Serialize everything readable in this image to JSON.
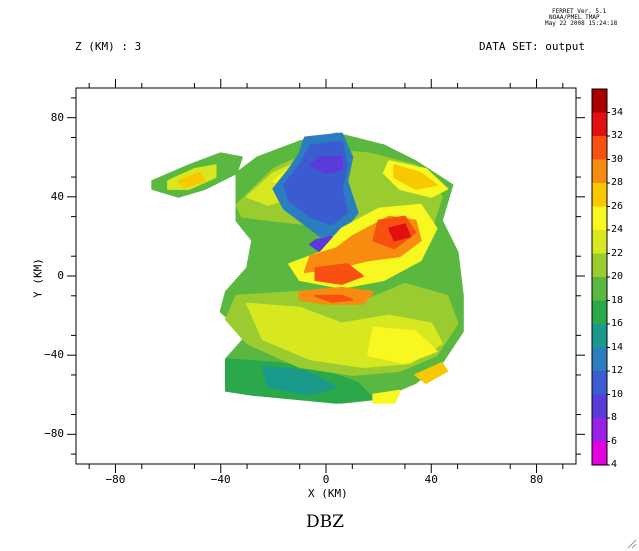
{
  "header": {
    "program_line1": "FERRET Ver. 5.1",
    "program_line2": "NOAA/PMEL TMAP",
    "program_line3": "May 22 2008 15:24:18",
    "z_label": "Z (KM) : 3",
    "dataset_label": "DATA SET: output"
  },
  "chart_data": {
    "type": "heatmap",
    "title": "DBZ",
    "xlabel": "X (KM)",
    "ylabel": "Y (KM)",
    "xlim": [
      -95,
      95
    ],
    "ylim": [
      -95,
      95
    ],
    "x_ticks": [
      -80,
      -40,
      0,
      40,
      80
    ],
    "y_ticks": [
      -80,
      -40,
      0,
      40,
      80
    ],
    "x_tick_labels": [
      "−80",
      "−40",
      "0",
      "40",
      "80"
    ],
    "y_tick_labels": [
      "−80",
      "−40",
      "0",
      "40",
      "80"
    ],
    "colorbar": {
      "levels": [
        4,
        6,
        8,
        10,
        12,
        14,
        16,
        18,
        20,
        22,
        24,
        26,
        28,
        30,
        32,
        34
      ],
      "colors": [
        "#e000e0",
        "#9a20e8",
        "#5a3ad8",
        "#3a5cd0",
        "#2a7ec0",
        "#1a9a8a",
        "#2aa84a",
        "#5ab840",
        "#9acc30",
        "#d8e820",
        "#f8f820",
        "#f8c800",
        "#f88c10",
        "#f85010",
        "#e01010",
        "#a80000"
      ]
    },
    "regions": [
      {
        "level": 18,
        "poly": [
          [
            -26,
            60
          ],
          [
            -10,
            68
          ],
          [
            4,
            72
          ],
          [
            22,
            66
          ],
          [
            34,
            58
          ],
          [
            48,
            46
          ],
          [
            44,
            28
          ],
          [
            50,
            12
          ],
          [
            52,
            -10
          ],
          [
            52,
            -28
          ],
          [
            44,
            -44
          ],
          [
            34,
            -54
          ],
          [
            20,
            -62
          ],
          [
            6,
            -64
          ],
          [
            -10,
            -62
          ],
          [
            -28,
            -58
          ],
          [
            -38,
            -56
          ],
          [
            -38,
            -42
          ],
          [
            -30,
            -30
          ],
          [
            -40,
            -18
          ],
          [
            -38,
            -8
          ],
          [
            -30,
            4
          ],
          [
            -28,
            18
          ],
          [
            -34,
            28
          ],
          [
            -34,
            40
          ],
          [
            -34,
            52
          ]
        ]
      },
      {
        "level": 16,
        "poly": [
          [
            -38,
            -42
          ],
          [
            -18,
            -44
          ],
          [
            0,
            -48
          ],
          [
            12,
            -54
          ],
          [
            18,
            -62
          ],
          [
            4,
            -64
          ],
          [
            -12,
            -62
          ],
          [
            -28,
            -60
          ],
          [
            -38,
            -58
          ]
        ]
      },
      {
        "level": 14,
        "poly": [
          [
            -24,
            -46
          ],
          [
            -8,
            -48
          ],
          [
            4,
            -56
          ],
          [
            -6,
            -60
          ],
          [
            -22,
            -56
          ]
        ]
      },
      {
        "level": 20,
        "poly": [
          [
            -34,
            -10
          ],
          [
            -10,
            -8
          ],
          [
            12,
            -14
          ],
          [
            30,
            -4
          ],
          [
            46,
            -10
          ],
          [
            50,
            -24
          ],
          [
            42,
            -40
          ],
          [
            28,
            -48
          ],
          [
            10,
            -50
          ],
          [
            -10,
            -46
          ],
          [
            -30,
            -34
          ],
          [
            -38,
            -22
          ]
        ]
      },
      {
        "level": 22,
        "poly": [
          [
            -30,
            -14
          ],
          [
            -10,
            -16
          ],
          [
            6,
            -24
          ],
          [
            24,
            -20
          ],
          [
            40,
            -24
          ],
          [
            44,
            -34
          ],
          [
            32,
            -44
          ],
          [
            14,
            -46
          ],
          [
            -6,
            -42
          ],
          [
            -24,
            -32
          ]
        ]
      },
      {
        "level": 24,
        "poly": [
          [
            18,
            -26
          ],
          [
            34,
            -28
          ],
          [
            42,
            -38
          ],
          [
            30,
            -44
          ],
          [
            16,
            -40
          ]
        ]
      },
      {
        "level": 20,
        "poly": [
          [
            -34,
            36
          ],
          [
            -20,
            54
          ],
          [
            -4,
            64
          ],
          [
            16,
            62
          ],
          [
            34,
            56
          ],
          [
            44,
            40
          ],
          [
            40,
            24
          ],
          [
            26,
            16
          ],
          [
            10,
            18
          ],
          [
            -6,
            26
          ],
          [
            -20,
            28
          ],
          [
            -32,
            30
          ]
        ]
      },
      {
        "level": 22,
        "poly": [
          [
            -30,
            40
          ],
          [
            -20,
            52
          ],
          [
            -10,
            58
          ],
          [
            -4,
            50
          ],
          [
            -12,
            40
          ],
          [
            -22,
            36
          ]
        ]
      },
      {
        "level": 24,
        "poly": [
          [
            -20,
            48
          ],
          [
            -12,
            56
          ],
          [
            -6,
            52
          ],
          [
            -12,
            44
          ]
        ]
      },
      {
        "level": 28,
        "poly": [
          [
            -16,
            50
          ],
          [
            -10,
            56
          ],
          [
            -6,
            52
          ],
          [
            -10,
            46
          ]
        ]
      },
      {
        "level": 24,
        "poly": [
          [
            24,
            58
          ],
          [
            38,
            54
          ],
          [
            46,
            44
          ],
          [
            40,
            40
          ],
          [
            28,
            44
          ],
          [
            22,
            52
          ]
        ]
      },
      {
        "level": 26,
        "poly": [
          [
            26,
            56
          ],
          [
            36,
            52
          ],
          [
            42,
            46
          ],
          [
            34,
            44
          ],
          [
            26,
            50
          ]
        ]
      },
      {
        "level": 12,
        "poly": [
          [
            -8,
            70
          ],
          [
            6,
            72
          ],
          [
            10,
            60
          ],
          [
            8,
            48
          ],
          [
            12,
            32
          ],
          [
            6,
            22
          ],
          [
            -2,
            20
          ],
          [
            -10,
            28
          ],
          [
            -16,
            34
          ],
          [
            -20,
            44
          ],
          [
            -14,
            54
          ],
          [
            -10,
            62
          ]
        ]
      },
      {
        "level": 10,
        "poly": [
          [
            -6,
            66
          ],
          [
            6,
            68
          ],
          [
            8,
            56
          ],
          [
            6,
            44
          ],
          [
            8,
            32
          ],
          [
            2,
            26
          ],
          [
            -6,
            30
          ],
          [
            -14,
            38
          ],
          [
            -16,
            46
          ],
          [
            -10,
            56
          ]
        ]
      },
      {
        "level": 8,
        "poly": [
          [
            -2,
            60
          ],
          [
            6,
            60
          ],
          [
            6,
            54
          ],
          [
            0,
            52
          ],
          [
            -6,
            56
          ]
        ]
      },
      {
        "level": 8,
        "poly": [
          [
            -4,
            18
          ],
          [
            2,
            20
          ],
          [
            4,
            14
          ],
          [
            -2,
            12
          ],
          [
            -6,
            16
          ]
        ]
      },
      {
        "level": 24,
        "poly": [
          [
            6,
            24
          ],
          [
            20,
            34
          ],
          [
            36,
            36
          ],
          [
            42,
            24
          ],
          [
            36,
            8
          ],
          [
            22,
            -2
          ],
          [
            6,
            -6
          ],
          [
            -10,
            -2
          ],
          [
            -14,
            6
          ],
          [
            -2,
            12
          ]
        ]
      },
      {
        "level": 28,
        "poly": [
          [
            10,
            20
          ],
          [
            24,
            30
          ],
          [
            34,
            28
          ],
          [
            36,
            18
          ],
          [
            28,
            10
          ],
          [
            16,
            8
          ],
          [
            4,
            4
          ],
          [
            -8,
            2
          ],
          [
            -6,
            10
          ],
          [
            4,
            14
          ]
        ]
      },
      {
        "level": 30,
        "poly": [
          [
            20,
            28
          ],
          [
            30,
            30
          ],
          [
            34,
            22
          ],
          [
            26,
            14
          ],
          [
            18,
            18
          ]
        ]
      },
      {
        "level": 32,
        "poly": [
          [
            24,
            24
          ],
          [
            30,
            26
          ],
          [
            32,
            20
          ],
          [
            26,
            18
          ]
        ]
      },
      {
        "level": 30,
        "poly": [
          [
            -4,
            4
          ],
          [
            8,
            6
          ],
          [
            14,
            0
          ],
          [
            6,
            -4
          ],
          [
            -4,
            -2
          ]
        ]
      },
      {
        "level": 28,
        "poly": [
          [
            -10,
            -8
          ],
          [
            6,
            -6
          ],
          [
            18,
            -8
          ],
          [
            14,
            -14
          ],
          [
            0,
            -14
          ],
          [
            -10,
            -12
          ]
        ]
      },
      {
        "level": 30,
        "poly": [
          [
            -4,
            -10
          ],
          [
            6,
            -10
          ],
          [
            10,
            -12
          ],
          [
            2,
            -13
          ]
        ]
      },
      {
        "level": 18,
        "poly": [
          [
            -66,
            48
          ],
          [
            -52,
            56
          ],
          [
            -40,
            62
          ],
          [
            -32,
            60
          ],
          [
            -34,
            52
          ],
          [
            -46,
            44
          ],
          [
            -56,
            40
          ],
          [
            -66,
            44
          ]
        ]
      },
      {
        "level": 22,
        "poly": [
          [
            -60,
            48
          ],
          [
            -50,
            54
          ],
          [
            -42,
            56
          ],
          [
            -42,
            50
          ],
          [
            -52,
            44
          ],
          [
            -60,
            44
          ]
        ]
      },
      {
        "level": 26,
        "poly": [
          [
            -56,
            48
          ],
          [
            -48,
            52
          ],
          [
            -46,
            48
          ],
          [
            -54,
            45
          ]
        ]
      },
      {
        "level": 26,
        "poly": [
          [
            34,
            -50
          ],
          [
            44,
            -44
          ],
          [
            46,
            -48
          ],
          [
            38,
            -54
          ]
        ]
      },
      {
        "level": 24,
        "poly": [
          [
            18,
            -60
          ],
          [
            28,
            -58
          ],
          [
            26,
            -64
          ],
          [
            18,
            -64
          ]
        ]
      }
    ]
  }
}
